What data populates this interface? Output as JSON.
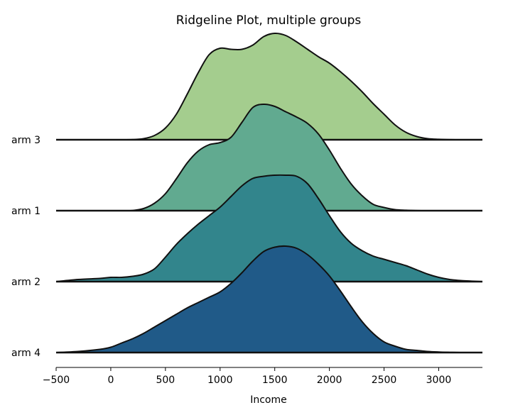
{
  "chart_data": {
    "type": "area",
    "title": "Ridgeline Plot, multiple groups",
    "xlabel": "Income",
    "ylabel": "",
    "xlim": [
      -500,
      3400
    ],
    "xticks": [
      -500,
      0,
      500,
      1000,
      1500,
      2000,
      2500,
      3000
    ],
    "xtick_labels": [
      "−500",
      "0",
      "500",
      "1000",
      "1500",
      "2000",
      "2500",
      "3000"
    ],
    "grid": false,
    "legend": "none",
    "x": [
      -500,
      -300,
      -100,
      0,
      100,
      200,
      300,
      400,
      500,
      600,
      700,
      800,
      900,
      1000,
      1100,
      1200,
      1300,
      1400,
      1500,
      1600,
      1700,
      1800,
      1900,
      2000,
      2100,
      2200,
      2300,
      2400,
      2500,
      2600,
      2700,
      2800,
      2900,
      3000,
      3100,
      3200,
      3400
    ],
    "series": [
      {
        "name": "arm 3",
        "color": "#a4cd8e",
        "values": [
          0,
          0,
          0,
          0,
          0,
          0.002,
          0.01,
          0.04,
          0.11,
          0.24,
          0.43,
          0.63,
          0.8,
          0.86,
          0.85,
          0.85,
          0.89,
          0.97,
          1.0,
          0.98,
          0.92,
          0.85,
          0.78,
          0.72,
          0.64,
          0.55,
          0.45,
          0.34,
          0.24,
          0.14,
          0.07,
          0.03,
          0.01,
          0.004,
          0.001,
          0,
          0
        ]
      },
      {
        "name": "arm 1",
        "color": "#61aa90",
        "values": [
          0,
          0,
          0,
          0,
          0,
          0.002,
          0.02,
          0.07,
          0.16,
          0.3,
          0.45,
          0.56,
          0.62,
          0.64,
          0.69,
          0.83,
          0.97,
          1.0,
          0.98,
          0.93,
          0.88,
          0.82,
          0.72,
          0.57,
          0.4,
          0.25,
          0.14,
          0.06,
          0.03,
          0.01,
          0.004,
          0.001,
          0,
          0,
          0,
          0,
          0
        ]
      },
      {
        "name": "arm 2",
        "color": "#32858c",
        "values": [
          0,
          0.02,
          0.03,
          0.04,
          0.04,
          0.05,
          0.07,
          0.12,
          0.23,
          0.35,
          0.45,
          0.54,
          0.62,
          0.7,
          0.8,
          0.9,
          0.97,
          0.99,
          1.0,
          1.0,
          0.99,
          0.92,
          0.78,
          0.62,
          0.47,
          0.36,
          0.29,
          0.24,
          0.21,
          0.18,
          0.15,
          0.11,
          0.07,
          0.04,
          0.02,
          0.01,
          0
        ]
      },
      {
        "name": "arm 4",
        "color": "#205a88",
        "values": [
          0,
          0.01,
          0.03,
          0.05,
          0.09,
          0.13,
          0.18,
          0.24,
          0.3,
          0.36,
          0.42,
          0.47,
          0.52,
          0.57,
          0.65,
          0.75,
          0.86,
          0.95,
          0.99,
          1.0,
          0.98,
          0.92,
          0.83,
          0.72,
          0.58,
          0.43,
          0.29,
          0.18,
          0.1,
          0.06,
          0.03,
          0.02,
          0.01,
          0.005,
          0.002,
          0,
          0
        ]
      }
    ]
  }
}
